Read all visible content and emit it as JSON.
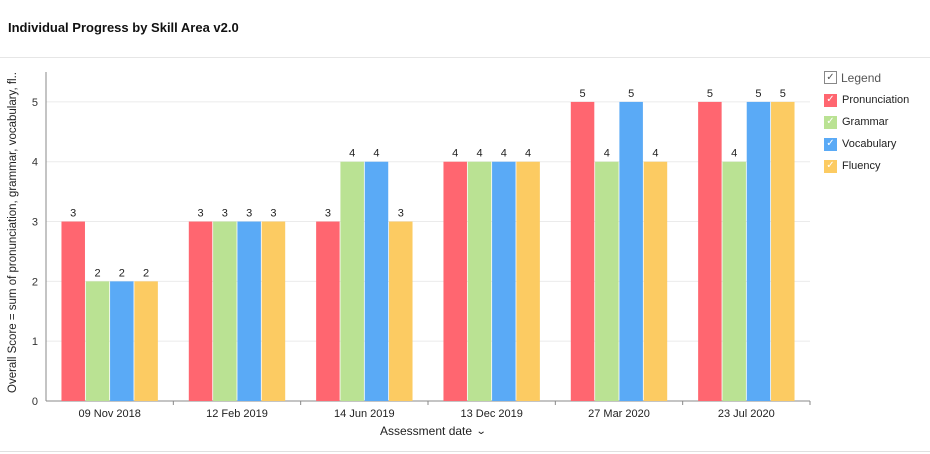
{
  "header": {
    "title": "Individual Progress by Skill Area v2.0"
  },
  "legend": {
    "title": "Legend",
    "check_mark": "✓"
  },
  "x_axis_chevron": "⌄",
  "chart_data": {
    "type": "bar",
    "title": "Individual Progress by Skill Area v2.0",
    "xlabel": "Assessment date",
    "ylabel": "Overall Score = sum of pronunciation, grammar, vocabulary, fl..",
    "categories": [
      "09 Nov 2018",
      "12 Feb 2019",
      "14 Jun 2019",
      "13 Dec 2019",
      "27 Mar 2020",
      "23 Jul 2020"
    ],
    "ylim": [
      0,
      5.5
    ],
    "yticks": [
      0,
      1,
      2,
      3,
      4,
      5
    ],
    "grid": true,
    "legend_position": "right",
    "series": [
      {
        "name": "Pronunciation",
        "color": "#ff6670",
        "values": [
          3,
          3,
          3,
          4,
          5,
          5
        ]
      },
      {
        "name": "Grammar",
        "color": "#bae293",
        "values": [
          2,
          3,
          4,
          4,
          4,
          4
        ]
      },
      {
        "name": "Vocabulary",
        "color": "#5aaaf6",
        "values": [
          2,
          3,
          4,
          4,
          5,
          5
        ]
      },
      {
        "name": "Fluency",
        "color": "#fccb62",
        "values": [
          2,
          3,
          3,
          4,
          4,
          5
        ]
      }
    ]
  }
}
